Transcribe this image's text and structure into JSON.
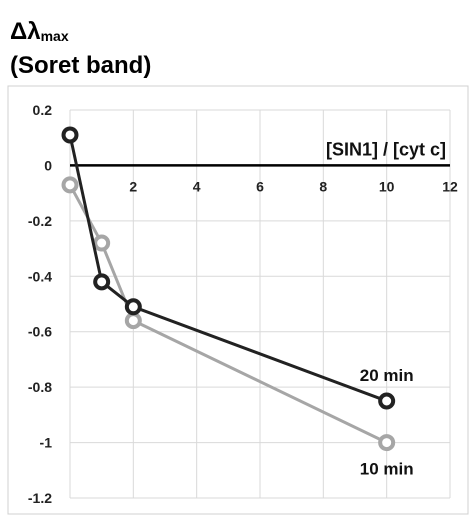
{
  "title": {
    "line1_main": "Δλ",
    "line1_sub": "max",
    "line2": "(Soret band)"
  },
  "chart_data": {
    "type": "line",
    "title": "Δλmax (Soret band)",
    "xlabel": "[SIN1] / [cyt c]",
    "ylabel": "",
    "xlim": [
      0,
      12
    ],
    "ylim": [
      -1.2,
      0.2
    ],
    "x_ticks": [
      0,
      2,
      4,
      6,
      8,
      10,
      12
    ],
    "y_ticks": [
      0.2,
      0,
      -0.2,
      -0.4,
      -0.6,
      -0.8,
      -1,
      -1.2
    ],
    "grid": true,
    "series": [
      {
        "name": "20 min",
        "color": "#222222",
        "x": [
          0,
          1,
          2,
          10
        ],
        "values": [
          0.11,
          -0.42,
          -0.51,
          -0.85
        ]
      },
      {
        "name": "10 min",
        "color": "#a6a6a6",
        "x": [
          0,
          1,
          2,
          10
        ],
        "values": [
          -0.07,
          -0.28,
          -0.56,
          -1.0
        ]
      }
    ]
  }
}
